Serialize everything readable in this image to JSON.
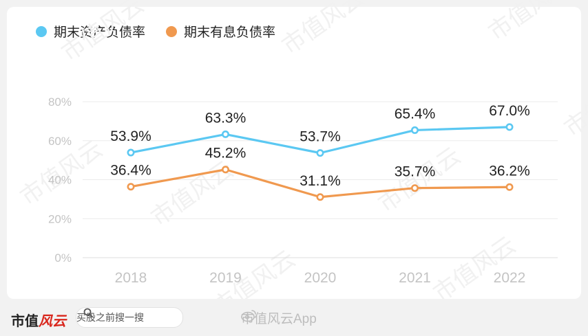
{
  "legend": {
    "items": [
      {
        "label": "期末资产负债率",
        "color": "#5bc8f2"
      },
      {
        "label": "期末有息负债率",
        "color": "#f0994f"
      }
    ]
  },
  "chart_data": {
    "type": "line",
    "categories": [
      "2018",
      "2019",
      "2020",
      "2021",
      "2022"
    ],
    "series": [
      {
        "name": "期末资产负债率",
        "color": "#5bc8f2",
        "values": [
          53.9,
          63.3,
          53.7,
          65.4,
          67.0
        ],
        "labels": [
          "53.9%",
          "63.3%",
          "53.7%",
          "65.4%",
          "67.0%"
        ]
      },
      {
        "name": "期末有息负债率",
        "color": "#f0994f",
        "values": [
          36.4,
          45.2,
          31.1,
          35.7,
          36.2
        ],
        "labels": [
          "36.4%",
          "45.2%",
          "31.1%",
          "35.7%",
          "36.2%"
        ]
      }
    ],
    "ylim": [
      0,
      80
    ],
    "yticks": [
      0,
      20,
      40,
      60,
      80
    ],
    "ytick_labels": [
      "0%",
      "20%",
      "40%",
      "60%",
      "80%"
    ],
    "grid": true,
    "legend_position": "top-left"
  },
  "footer": {
    "brand_text": "市值",
    "brand_logo": "风云",
    "search_text": "买股之前搜一搜",
    "weibo_text": "市值风云App"
  },
  "watermark": {
    "text": "市值风云"
  },
  "icons": {
    "search": "search-icon",
    "weibo": "weibo-icon"
  }
}
